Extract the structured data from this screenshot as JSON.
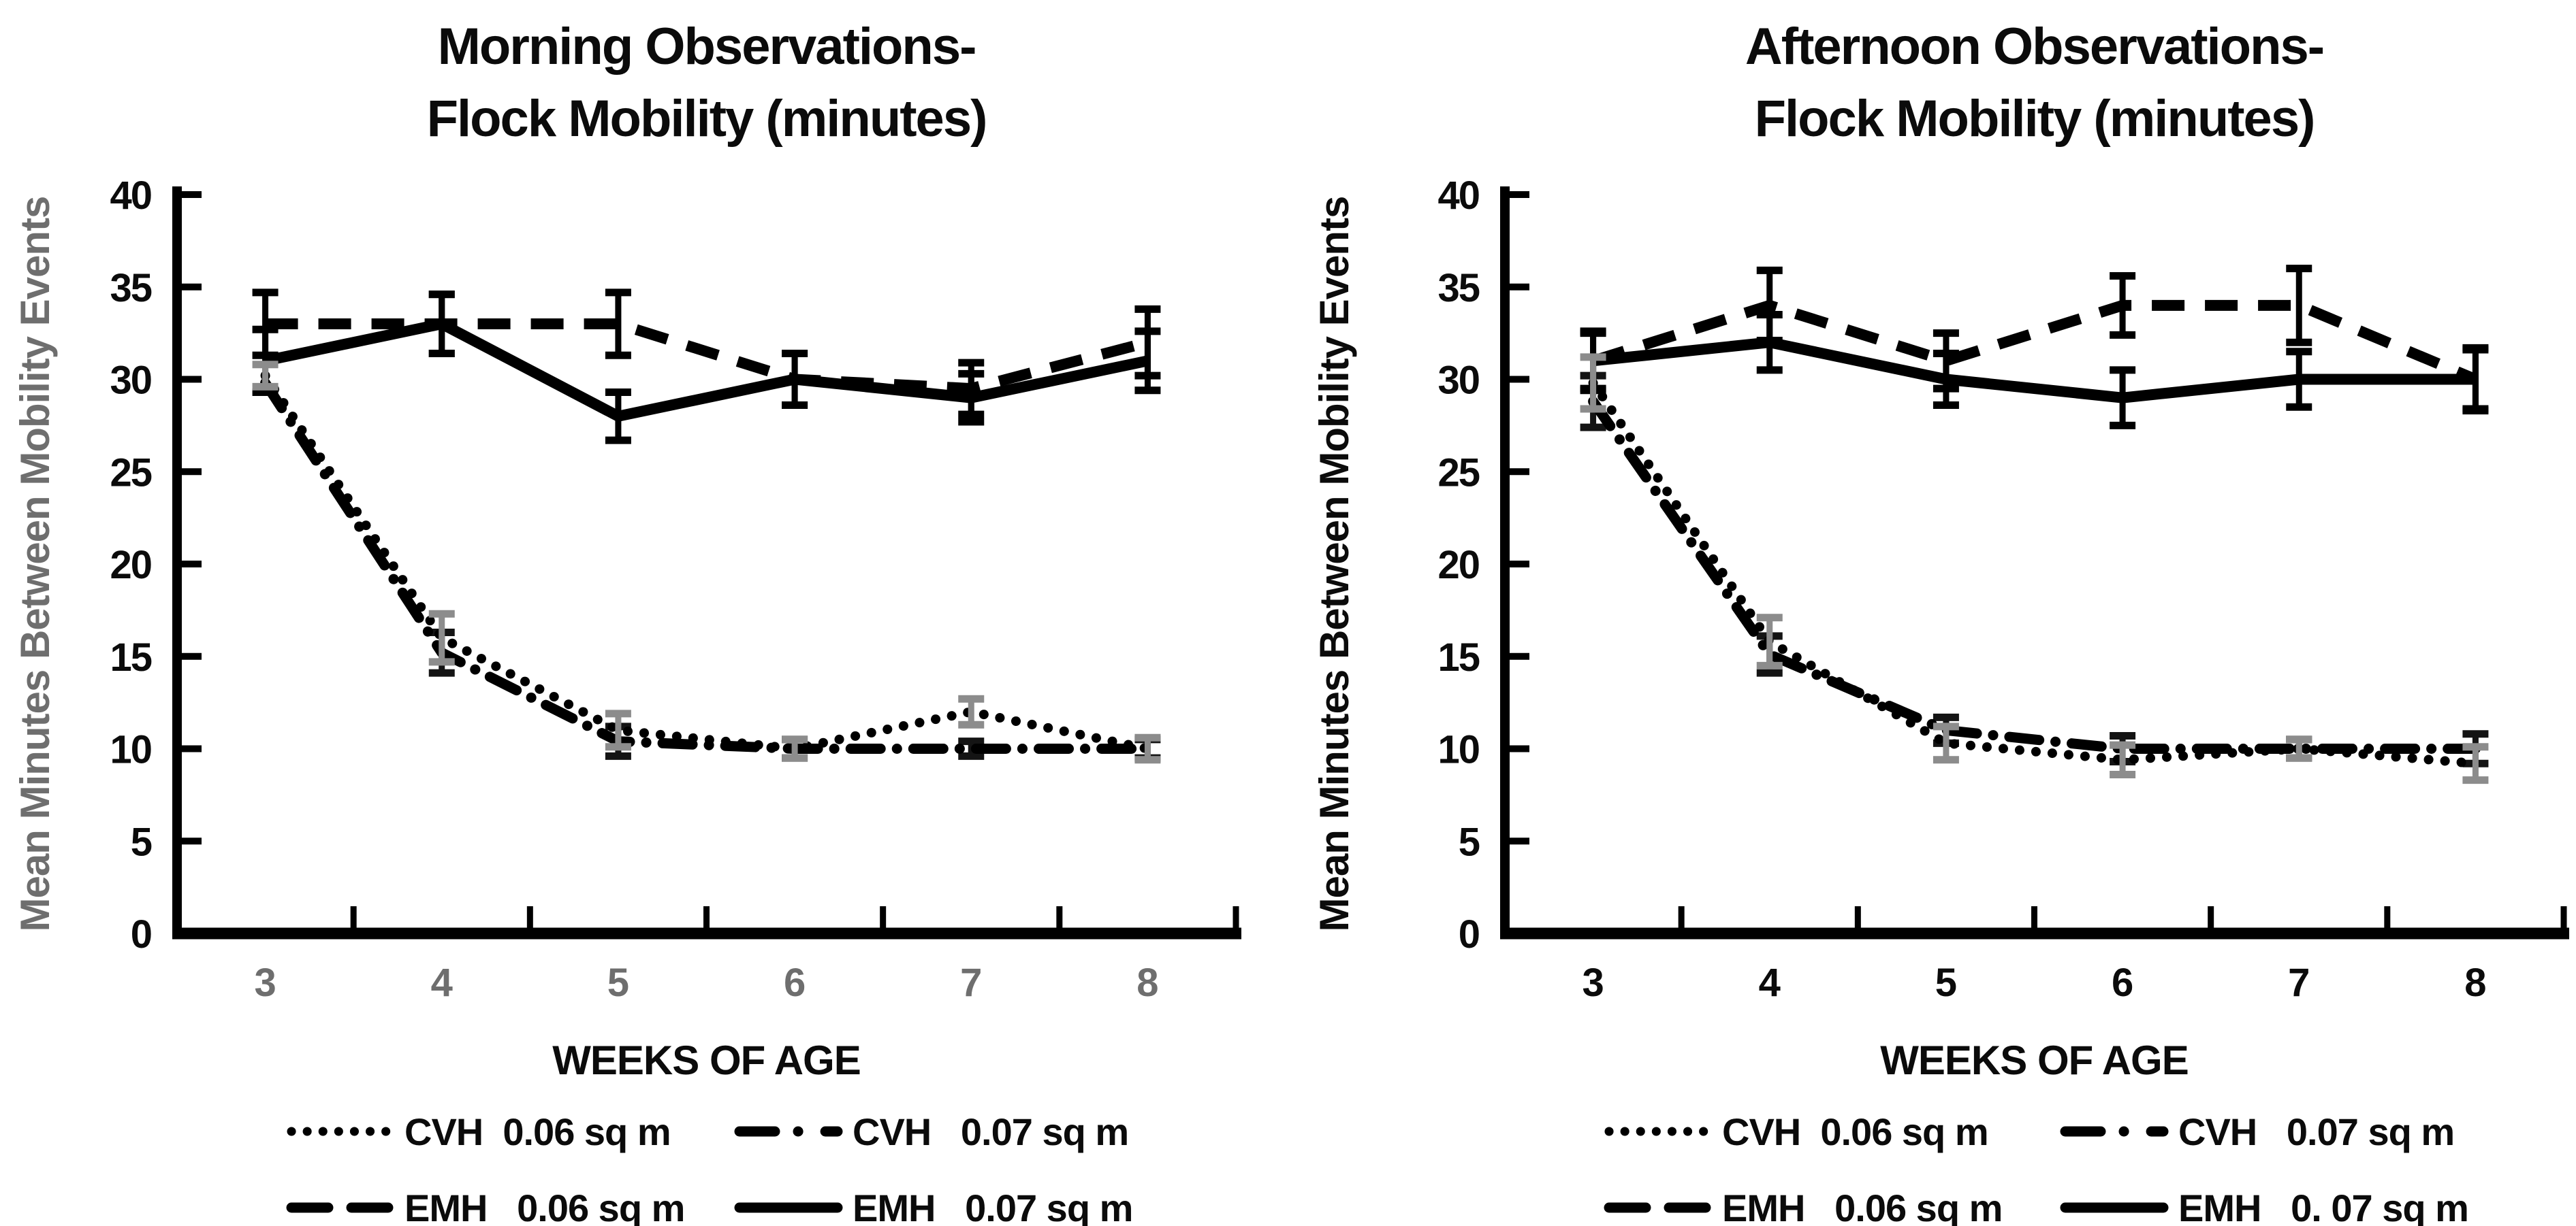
{
  "figure": {
    "background": "#ffffff",
    "axis_color": "#000000",
    "cvh006_error_color": "#8c8c8c"
  },
  "charts": [
    {
      "id": "morning",
      "title_line1": "Morning Observations-",
      "title_line2": "Flock Mobility (minutes)",
      "x_axis_label": "WEEKS OF AGE",
      "y_axis_label": "Mean Minutes Between Mobility Events",
      "x_tick_color": "#6e6e6e",
      "y_axis_label_color": "#6e6e6e",
      "y_tick_color": "#0b0b0b",
      "chart_data": {
        "type": "line",
        "x": [
          3,
          4,
          5,
          6,
          7,
          8
        ],
        "xlabel": "WEEKS OF AGE",
        "ylabel": "Mean Minutes Between Mobility Events",
        "ylim": [
          0,
          40
        ],
        "y_ticks": [
          0,
          5,
          10,
          15,
          20,
          25,
          30,
          35,
          40
        ],
        "grid": false,
        "legend_position": "bottom",
        "series": [
          {
            "name": "CVH  0.06 sq m",
            "style": "dotted",
            "color": "#000000",
            "error_color": "#8c8c8c",
            "values": [
              30.2,
              16,
              11,
              10,
              12,
              10
            ],
            "errors": [
              0.6,
              1.3,
              0.9,
              0.5,
              0.7,
              0.6
            ]
          },
          {
            "name": "CVH   0.07 sq m",
            "style": "dashdot",
            "color": "#000000",
            "error_color": "#141414",
            "values": [
              29.8,
              15.2,
              10.4,
              10,
              10,
              10
            ],
            "errors": [
              0,
              1.1,
              0.8,
              0.5,
              0.4,
              0.5
            ]
          },
          {
            "name": "EMH   0.06 sq m",
            "style": "dashed",
            "color": "#000000",
            "error_color": "#000000",
            "values": [
              33,
              33,
              33,
              30,
              29.5,
              32
            ],
            "errors": [
              1.7,
              1.6,
              1.7,
              1.4,
              1.4,
              1.8
            ]
          },
          {
            "name": "EMH   0.07 sq m",
            "style": "solid",
            "color": "#000000",
            "error_color": "#000000",
            "values": [
              31,
              33,
              28,
              30,
              29,
              31
            ],
            "errors": [
              1.7,
              1.6,
              1.3,
              1.4,
              1.3,
              1.6
            ]
          }
        ]
      }
    },
    {
      "id": "afternoon",
      "title_line1": "Afternoon Observations-",
      "title_line2": "Flock Mobility (minutes)",
      "x_axis_label": "WEEKS OF AGE",
      "y_axis_label": "Mean Minutes Between Mobility Events",
      "x_tick_color": "#0b0b0b",
      "y_axis_label_color": "#0b0b0b",
      "y_tick_color": "#0b0b0b",
      "chart_data": {
        "type": "line",
        "x": [
          3,
          4,
          5,
          6,
          7,
          8
        ],
        "xlabel": "WEEKS OF AGE",
        "ylabel": "Mean Minutes Between Mobility Events",
        "ylim": [
          0,
          40
        ],
        "y_ticks": [
          0,
          5,
          10,
          15,
          20,
          25,
          30,
          35,
          40
        ],
        "grid": false,
        "legend_position": "bottom",
        "series": [
          {
            "name": "CVH  0.06 sq m",
            "style": "dotted",
            "color": "#000000",
            "error_color": "#8c8c8c",
            "values": [
              29.8,
              15.8,
              10.3,
              9.4,
              10,
              9.2
            ],
            "errors": [
              1.4,
              1.3,
              0.9,
              0.8,
              0.5,
              0.9
            ]
          },
          {
            "name": "CVH   0.07 sq m",
            "style": "dashdot",
            "color": "#000000",
            "error_color": "#141414",
            "values": [
              28.8,
              15.1,
              11,
              10,
              10,
              10
            ],
            "errors": [
              1.4,
              1.0,
              0.7,
              0.7,
              0.5,
              0.8
            ]
          },
          {
            "name": "EMH   0.06 sq m",
            "style": "dashed",
            "color": "#000000",
            "error_color": "#000000",
            "values": [
              31,
              34,
              31,
              34,
              34,
              30
            ],
            "errors": [
              1.5,
              1.9,
              1.5,
              1.6,
              2.0,
              1.7
            ]
          },
          {
            "name": "EMH   0. 07 sq m",
            "style": "solid",
            "color": "#000000",
            "error_color": "#000000",
            "values": [
              31,
              32,
              30,
              29,
              30,
              30
            ],
            "errors": [
              1.6,
              1.5,
              1.4,
              1.5,
              1.5,
              1.6
            ]
          }
        ]
      }
    }
  ]
}
